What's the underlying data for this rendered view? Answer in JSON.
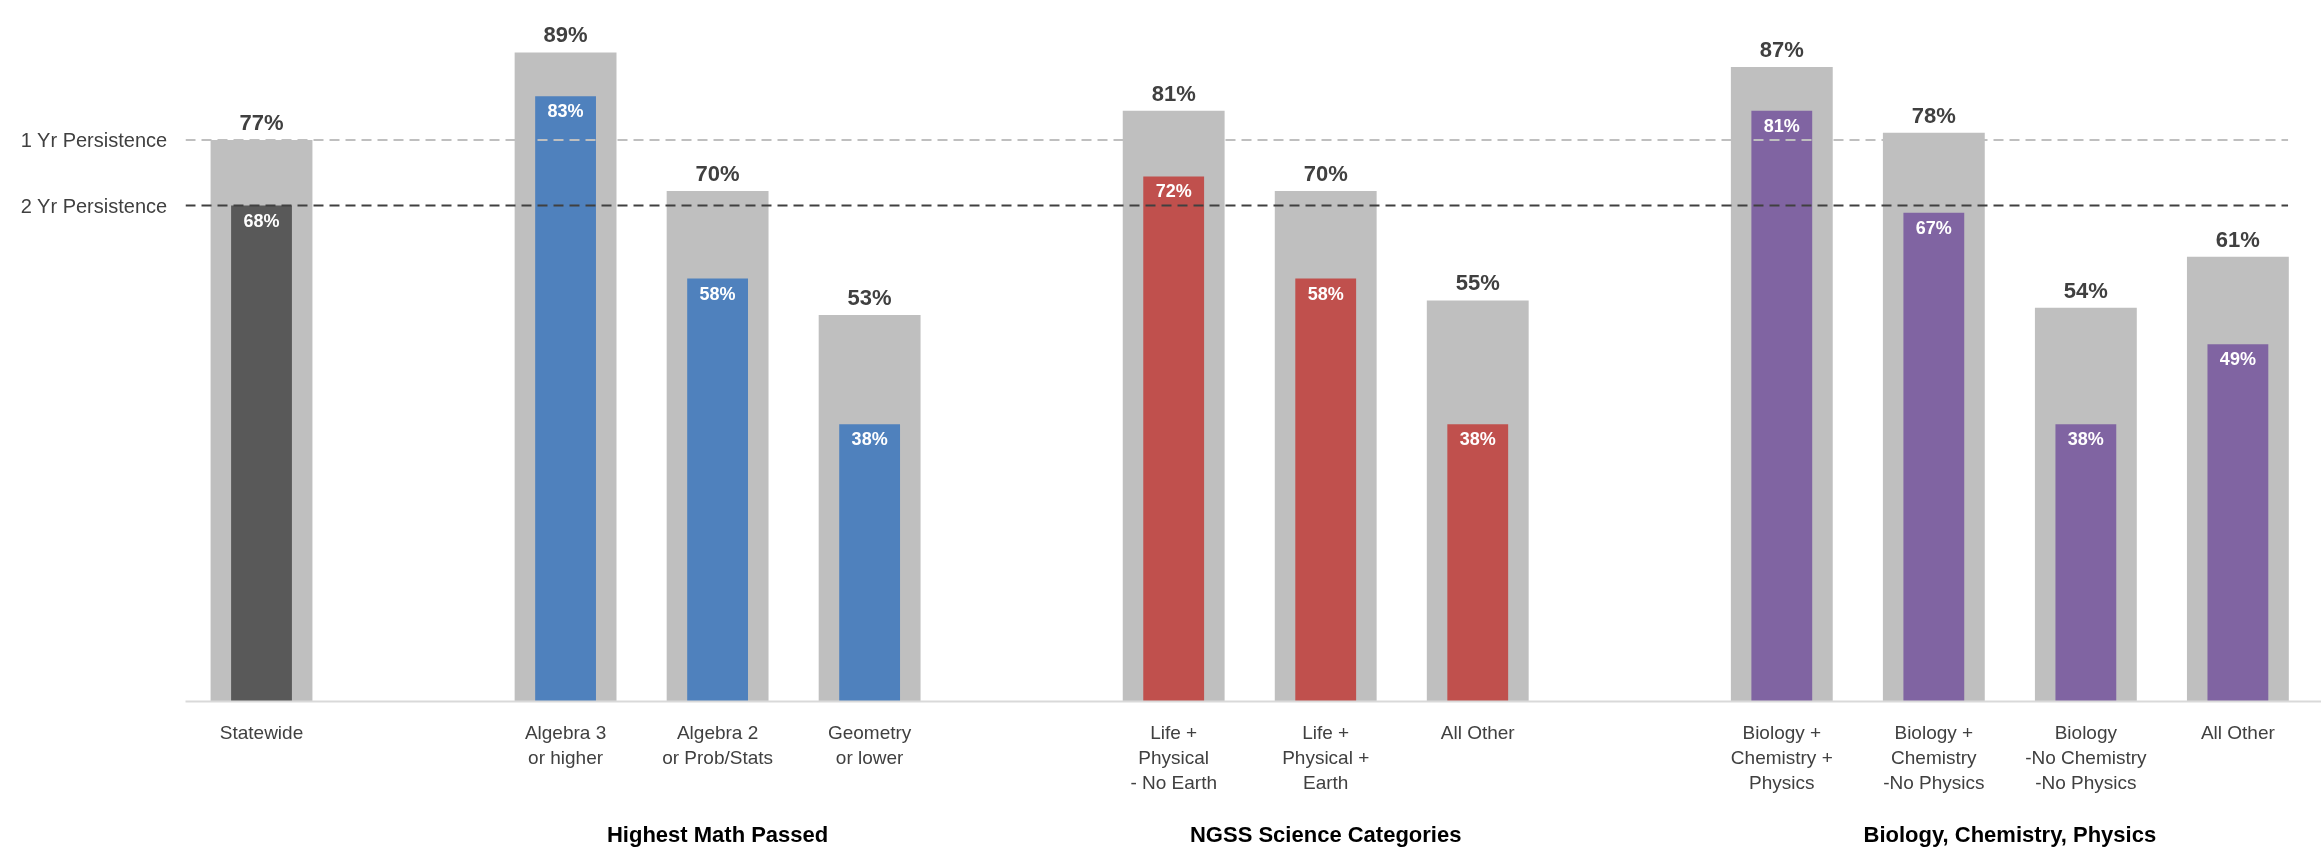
{
  "chart_data": {
    "type": "bar",
    "categories": [
      "Statewide",
      null,
      "Algebra 3\nor higher",
      "Algebra 2\nor Prob/Stats",
      "Geometry\nor lower",
      null,
      "Life +\nPhysical\n- No Earth",
      "Life +\nPhysical +\nEarth",
      "All Other",
      null,
      "Biology +\nChemistry +\nPhysics",
      "Biology +\nChemistry\n-No Physics",
      "Biology\n-No Chemistry\n-No Physics",
      "All Other"
    ],
    "series": [
      {
        "color": "#bfbfbf",
        "values": [
          77,
          null,
          89,
          70,
          53,
          null,
          81,
          70,
          55,
          null,
          87,
          78,
          54,
          61
        ],
        "value_labels": [
          "77%",
          null,
          "89%",
          "70%",
          "53%",
          null,
          "81%",
          "70%",
          "55%",
          null,
          "87%",
          "78%",
          "54%",
          "61%"
        ]
      },
      {
        "colors": [
          "#595959",
          null,
          "#4f81bd",
          "#4f81bd",
          "#4f81bd",
          null,
          "#c0504d",
          "#c0504d",
          "#c0504d",
          null,
          "#8064a2",
          "#8064a2",
          "#8064a2",
          "#8064a2"
        ],
        "values": [
          68,
          null,
          83,
          58,
          38,
          null,
          72,
          58,
          38,
          null,
          81,
          67,
          38,
          49
        ],
        "value_labels": [
          "68%",
          null,
          "83%",
          "58%",
          "38%",
          null,
          "72%",
          "58%",
          "38%",
          null,
          "81%",
          "67%",
          "38%",
          "49%"
        ]
      }
    ],
    "ref_lines": [
      {
        "axis": "y",
        "value": 77,
        "label": "1 Yr Persistence",
        "color": "#bfbfbf",
        "line_style": "dashed"
      },
      {
        "axis": "y",
        "value": 68,
        "label": "2 Yr Persistence",
        "color": "#404040",
        "line_style": "dashed"
      }
    ],
    "annotations": [
      "Highest Math Passed",
      "NGSS Science Categories",
      "Biology, Chemistry, Physics"
    ],
    "grid": false
  }
}
